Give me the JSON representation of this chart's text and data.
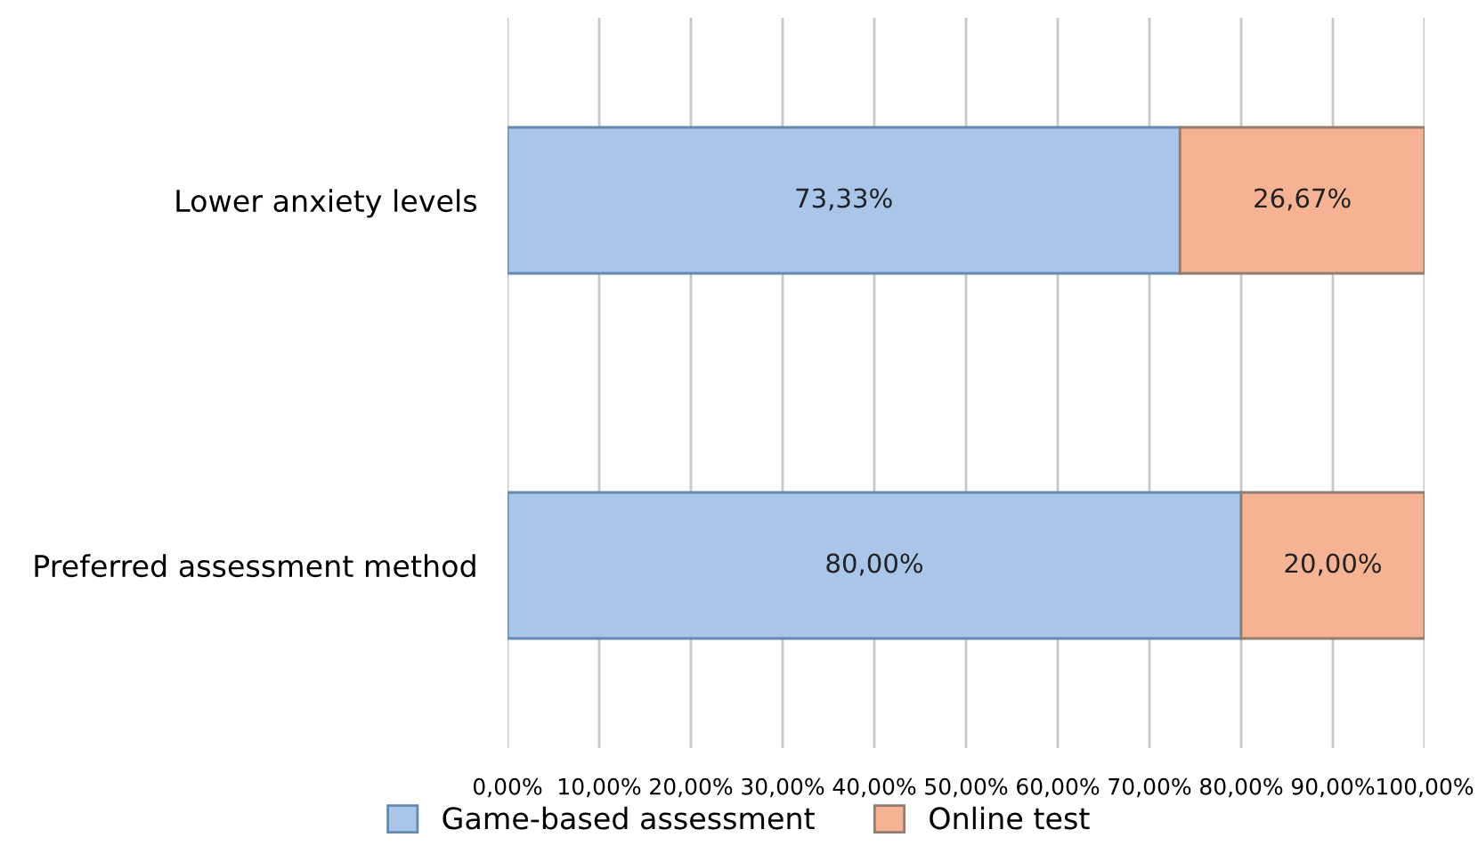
{
  "chart_data": {
    "type": "bar",
    "orientation": "horizontal",
    "stacked": true,
    "categories": [
      "Lower anxiety levels",
      "Preferred assessment method"
    ],
    "series": [
      {
        "name": "Game-based assessment",
        "color": "#a9c5ea",
        "values": [
          73.33,
          80.0
        ],
        "value_labels": [
          "73,33%",
          "80,00%"
        ]
      },
      {
        "name": "Online test",
        "color": "#f5b393",
        "values": [
          26.67,
          20.0
        ],
        "value_labels": [
          "26,67%",
          "20,00%"
        ]
      }
    ],
    "xlim": [
      0,
      100
    ],
    "xticks": [
      {
        "value": 0,
        "label": "0,00%"
      },
      {
        "value": 10,
        "label": "10,00%"
      },
      {
        "value": 20,
        "label": "20,00%"
      },
      {
        "value": 30,
        "label": "30,00%"
      },
      {
        "value": 40,
        "label": "40,00%"
      },
      {
        "value": 50,
        "label": "50,00%"
      },
      {
        "value": 60,
        "label": "60,00%"
      },
      {
        "value": 70,
        "label": "70,00%"
      },
      {
        "value": 80,
        "label": "80,00%"
      },
      {
        "value": 90,
        "label": "90,00%"
      },
      {
        "value": 100,
        "label": "100,00%"
      }
    ],
    "grid": "x",
    "legend": "bottom"
  }
}
